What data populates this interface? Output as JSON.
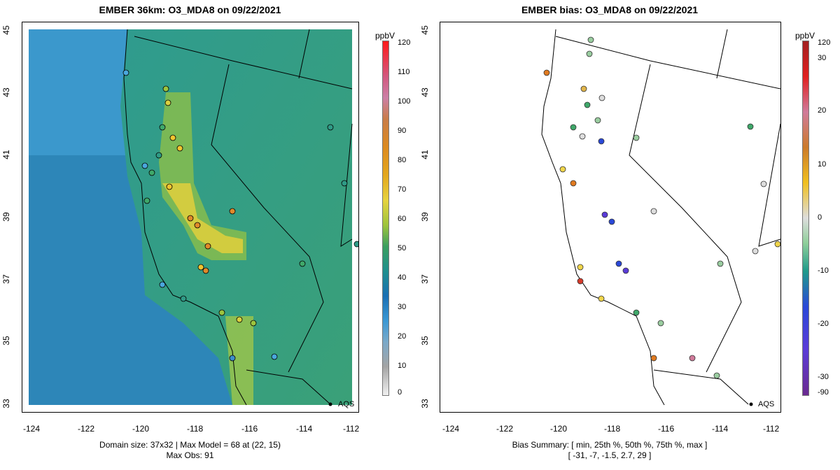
{
  "left_map": {
    "title": "EMBER 36km: O3_MDA8 on 09/22/2021",
    "x_ticks": [
      "-124",
      "-122",
      "-120",
      "-118",
      "-116",
      "-114",
      "-112"
    ],
    "y_ticks": [
      "33",
      "35",
      "37",
      "39",
      "41",
      "43",
      "45"
    ],
    "colorbar_unit": "ppbV",
    "colorbar_ticks": [
      "120",
      "110",
      "100",
      "90",
      "80",
      "70",
      "60",
      "50",
      "40",
      "30",
      "20",
      "10",
      "0"
    ],
    "footer_line1": "Domain size: 37x32 | Max Model = 68 at (22, 15)",
    "footer_line2": "Max Obs: 91",
    "aqs_label": "AQS"
  },
  "right_map": {
    "title": "EMBER bias: O3_MDA8 on 09/22/2021",
    "x_ticks": [
      "-124",
      "-122",
      "-120",
      "-118",
      "-116",
      "-114",
      "-112"
    ],
    "y_ticks": [
      "33",
      "35",
      "37",
      "39",
      "41",
      "43",
      "45"
    ],
    "colorbar_unit": "ppbV",
    "colorbar_ticks": [
      "120",
      "30",
      "20",
      "10",
      "0",
      "-10",
      "-20",
      "-30",
      "-90"
    ],
    "footer_line1": "Bias Summary: [ min, 25th %, 50th %, 75th %, max ]",
    "footer_line2": "[ -31,  -7,  -1.5,  2.7,  29 ]",
    "aqs_label": "AQS"
  },
  "colors": {
    "ocean_model": "#2e7fb8",
    "land_model": "#2f9a86",
    "high_model": "#e8d23a",
    "obs_outline": "#000000"
  }
}
